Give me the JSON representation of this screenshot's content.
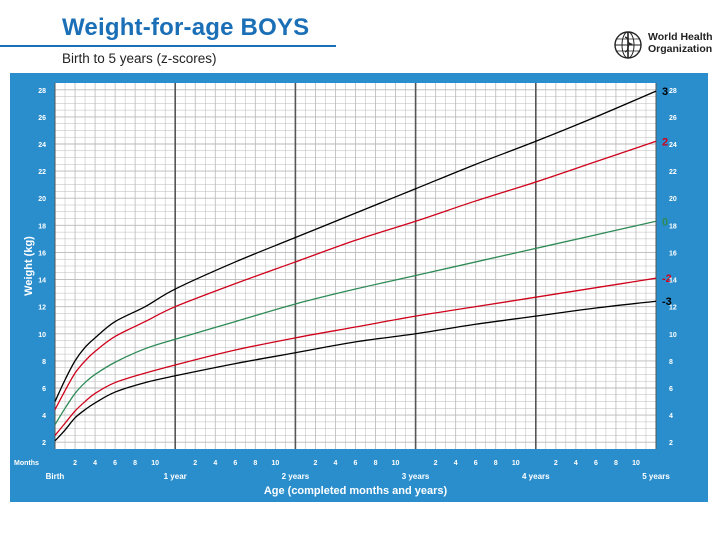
{
  "header": {
    "title": "Weight-for-age BOYS",
    "subtitle": "Birth to 5 years (z-scores)",
    "org_line1": "World Health",
    "org_line2": "Organization",
    "title_color": "#1a6fb6"
  },
  "chart_data": {
    "type": "line",
    "ylabel": "Weight (kg)",
    "xlabel": "Age (completed months and years)",
    "months_label": "Months",
    "xlim": [
      0,
      60
    ],
    "ylim": [
      1.5,
      28.5
    ],
    "y_ticks": [
      2,
      4,
      6,
      8,
      10,
      12,
      14,
      16,
      18,
      20,
      22,
      24,
      26,
      28
    ],
    "minor_month_ticks": [
      {
        "x": 2,
        "label": "2"
      },
      {
        "x": 4,
        "label": "4"
      },
      {
        "x": 6,
        "label": "6"
      },
      {
        "x": 8,
        "label": "8"
      },
      {
        "x": 10,
        "label": "10"
      },
      {
        "x": 14,
        "label": "2"
      },
      {
        "x": 16,
        "label": "4"
      },
      {
        "x": 18,
        "label": "6"
      },
      {
        "x": 20,
        "label": "8"
      },
      {
        "x": 22,
        "label": "10"
      },
      {
        "x": 26,
        "label": "2"
      },
      {
        "x": 28,
        "label": "4"
      },
      {
        "x": 30,
        "label": "6"
      },
      {
        "x": 32,
        "label": "8"
      },
      {
        "x": 34,
        "label": "10"
      },
      {
        "x": 38,
        "label": "2"
      },
      {
        "x": 40,
        "label": "4"
      },
      {
        "x": 42,
        "label": "6"
      },
      {
        "x": 44,
        "label": "8"
      },
      {
        "x": 46,
        "label": "10"
      },
      {
        "x": 50,
        "label": "2"
      },
      {
        "x": 52,
        "label": "4"
      },
      {
        "x": 54,
        "label": "6"
      },
      {
        "x": 56,
        "label": "8"
      },
      {
        "x": 58,
        "label": "10"
      }
    ],
    "year_ticks": [
      {
        "x": 0,
        "label": "Birth"
      },
      {
        "x": 12,
        "label": "1 year"
      },
      {
        "x": 24,
        "label": "2 years"
      },
      {
        "x": 36,
        "label": "3 years"
      },
      {
        "x": 48,
        "label": "4 years"
      },
      {
        "x": 60,
        "label": "5 years"
      }
    ],
    "x": [
      0,
      1,
      2,
      3,
      4,
      6,
      9,
      12,
      18,
      24,
      30,
      36,
      42,
      48,
      54,
      60
    ],
    "series": [
      {
        "name": "3",
        "color": "#000000",
        "values": [
          5.0,
          6.6,
          8.0,
          9.0,
          9.7,
          10.9,
          12.0,
          13.3,
          15.3,
          17.1,
          18.9,
          20.7,
          22.5,
          24.2,
          26.0,
          27.9
        ]
      },
      {
        "name": "2",
        "color": "#d0021b",
        "values": [
          4.4,
          5.8,
          7.1,
          8.0,
          8.7,
          9.8,
          10.9,
          12.0,
          13.7,
          15.3,
          16.9,
          18.3,
          19.8,
          21.2,
          22.7,
          24.2
        ]
      },
      {
        "name": "0",
        "color": "#2e8b57",
        "values": [
          3.3,
          4.5,
          5.6,
          6.4,
          7.0,
          7.9,
          8.9,
          9.6,
          10.9,
          12.2,
          13.3,
          14.3,
          15.3,
          16.3,
          17.3,
          18.3
        ]
      },
      {
        "name": "-2",
        "color": "#d0021b",
        "values": [
          2.5,
          3.4,
          4.3,
          5.0,
          5.6,
          6.4,
          7.1,
          7.7,
          8.8,
          9.7,
          10.5,
          11.3,
          12.0,
          12.7,
          13.4,
          14.1
        ]
      },
      {
        "name": "-3",
        "color": "#000000",
        "values": [
          2.1,
          2.9,
          3.8,
          4.4,
          4.9,
          5.7,
          6.4,
          6.9,
          7.8,
          8.6,
          9.4,
          10.0,
          10.7,
          11.3,
          11.9,
          12.4
        ]
      }
    ],
    "colors": {
      "panel": "#2a8ecd",
      "plot_bg": "#ffffff",
      "grid": "#b9b9b9",
      "grid_year": "#555555"
    },
    "grid": true
  }
}
